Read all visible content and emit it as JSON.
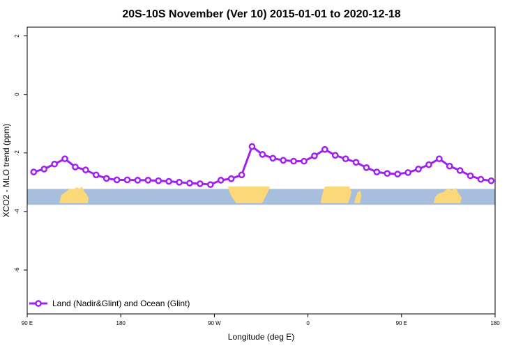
{
  "chart_data": {
    "type": "line",
    "title": "20S-10S November (Ver 10)   2015-01-01 to 2020-12-18",
    "xlabel": "Longitude (deg E)",
    "ylabel": "XCO2 - MLO trend (ppm)",
    "xlim": [
      90,
      450
    ],
    "ylim": [
      -7.5,
      2.3
    ],
    "x_ticks": [
      {
        "value": 90,
        "label": "90 E"
      },
      {
        "value": 162,
        "label": "180"
      },
      {
        "value": 234,
        "label": "90 W"
      },
      {
        "value": 306,
        "label": "0"
      },
      {
        "value": 378,
        "label": "90 E"
      },
      {
        "value": 450,
        "label": "180"
      }
    ],
    "y_ticks": [
      {
        "value": 2,
        "label": "2"
      },
      {
        "value": 0,
        "label": "0"
      },
      {
        "value": -2,
        "label": "-2"
      },
      {
        "value": -4,
        "label": "-4"
      },
      {
        "value": -6,
        "label": "-6"
      }
    ],
    "grid": false,
    "legend_position": "bottom-left",
    "series": [
      {
        "name": "Land (Nadir&Glint) and Ocean (Glint)",
        "color": "#a020f0",
        "x": [
          95,
          103,
          111,
          119,
          127,
          135,
          143,
          151,
          159,
          167,
          175,
          183,
          191,
          199,
          207,
          215,
          223,
          231,
          239,
          247,
          255,
          263,
          271,
          279,
          287,
          295,
          303,
          311,
          319,
          327,
          335,
          343,
          351,
          359,
          367,
          375,
          383,
          391,
          399,
          407,
          415,
          423,
          431,
          439,
          447
        ],
        "y": [
          -2.65,
          -2.55,
          -2.38,
          -2.2,
          -2.48,
          -2.58,
          -2.75,
          -2.87,
          -2.92,
          -2.92,
          -2.93,
          -2.93,
          -2.95,
          -2.97,
          -3.0,
          -3.03,
          -3.05,
          -3.08,
          -2.93,
          -2.88,
          -2.75,
          -1.78,
          -2.05,
          -2.18,
          -2.25,
          -2.28,
          -2.28,
          -2.1,
          -1.88,
          -2.08,
          -2.2,
          -2.32,
          -2.5,
          -2.65,
          -2.7,
          -2.72,
          -2.67,
          -2.55,
          -2.4,
          -2.2,
          -2.45,
          -2.6,
          -2.78,
          -2.9,
          -2.95
        ]
      }
    ],
    "surface_band": {
      "y_top": -3.23,
      "y_bottom": -3.77,
      "ocean_color": "#a7bedd",
      "land_color": "#fcd978",
      "land_regions": []
    }
  }
}
